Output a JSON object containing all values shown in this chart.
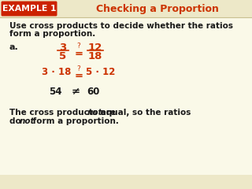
{
  "bg_color": "#faf9e8",
  "header_bg": "#ede8c8",
  "example_box_color": "#cc2200",
  "example_text": "EXAMPLE 1",
  "title_text": "Checking a Proportion",
  "title_color": "#cc3300",
  "intro_line1": "Use cross products to decide whether the ratios",
  "intro_line2": "form a proportion.",
  "label_a": "a.",
  "frac1_num": "3",
  "frac1_den": "5",
  "frac2_num": "12",
  "frac2_den": "18",
  "q_mark": "?",
  "eq_sign": "=",
  "cross_left": "3 · 18",
  "cross_right": "5 · 12",
  "result_left": "54",
  "not_equal": "≠",
  "result_right": "60",
  "math_color": "#cc3300",
  "black_color": "#1a1a1a",
  "main_fs": 7.5,
  "math_fs": 8.5
}
